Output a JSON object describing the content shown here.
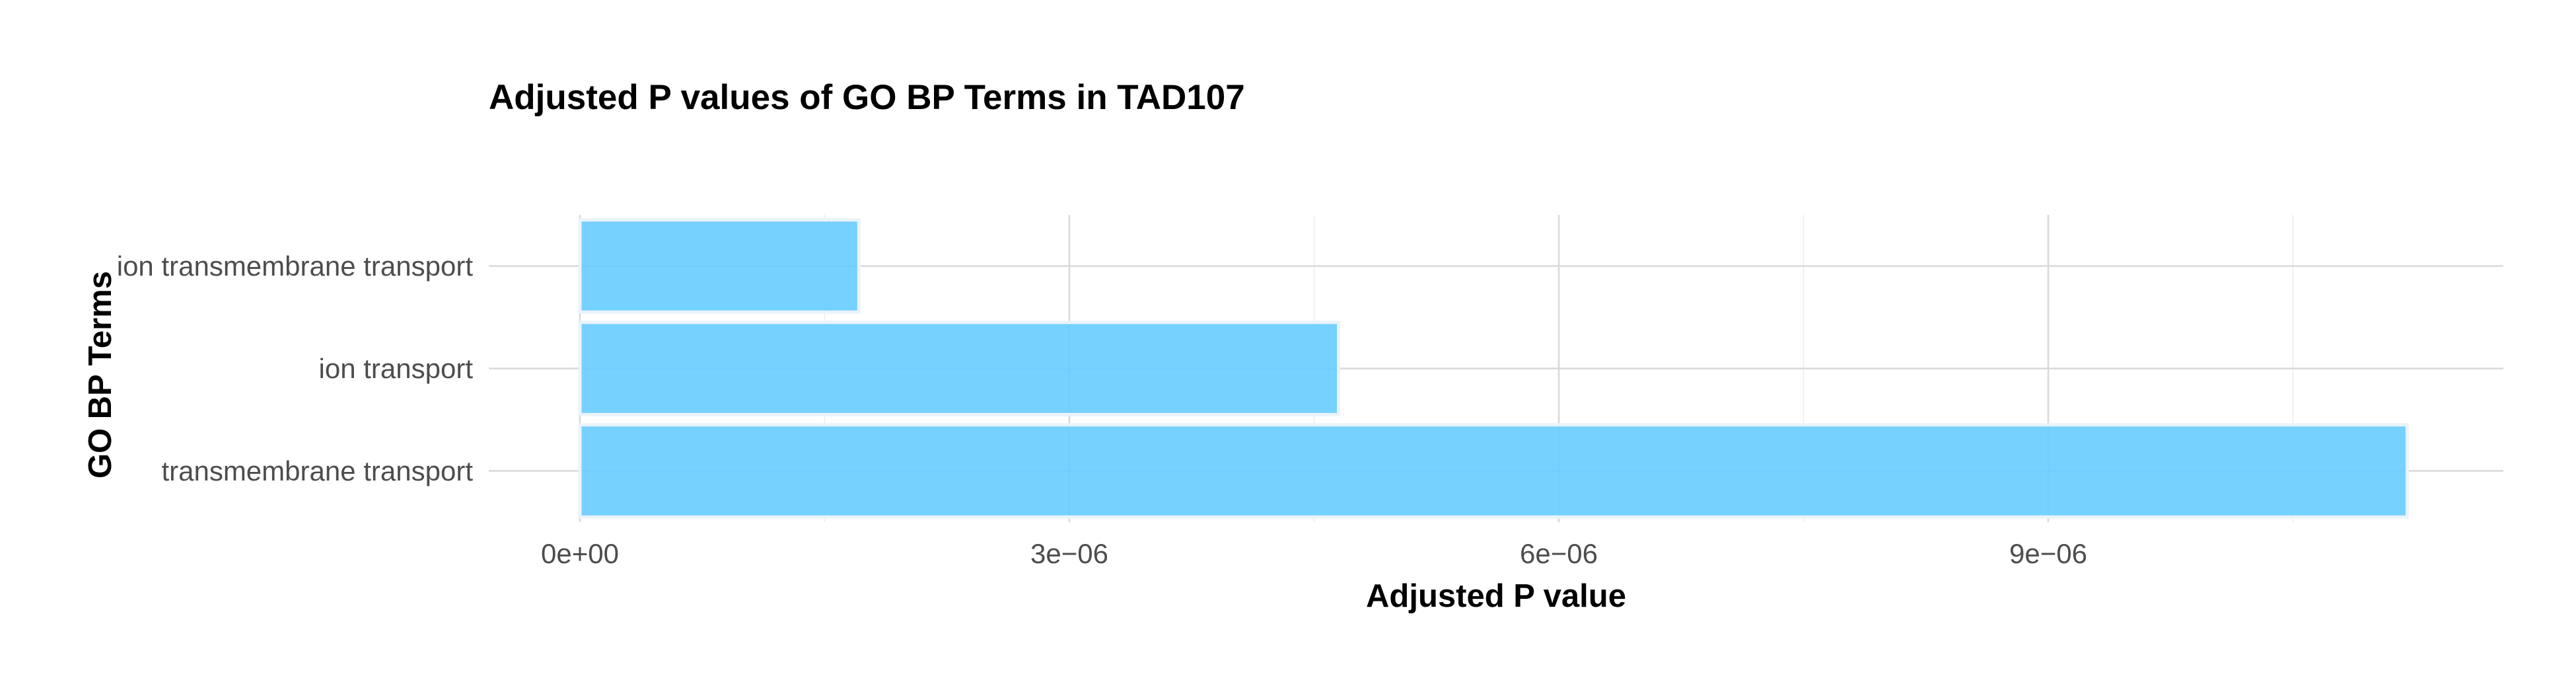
{
  "chart_data": {
    "type": "bar",
    "orientation": "horizontal",
    "title": "Adjusted P values of GO BP Terms in TAD107",
    "xlabel": "Adjusted P value",
    "ylabel": "GO BP Terms",
    "categories": [
      "transmembrane transport",
      "ion transport",
      "ion transmembrane transport"
    ],
    "values": [
      1.12e-05,
      4.65e-06,
      1.71e-06
    ],
    "xlim": [
      0,
      1.18e-05
    ],
    "xticks": [
      0,
      3e-06,
      6e-06,
      9e-06
    ],
    "xtick_labels": [
      "0e+00",
      "3e−06",
      "6e−06",
      "9e−06"
    ],
    "bar_color": "#66ccff",
    "grid": true,
    "legend": "none"
  }
}
